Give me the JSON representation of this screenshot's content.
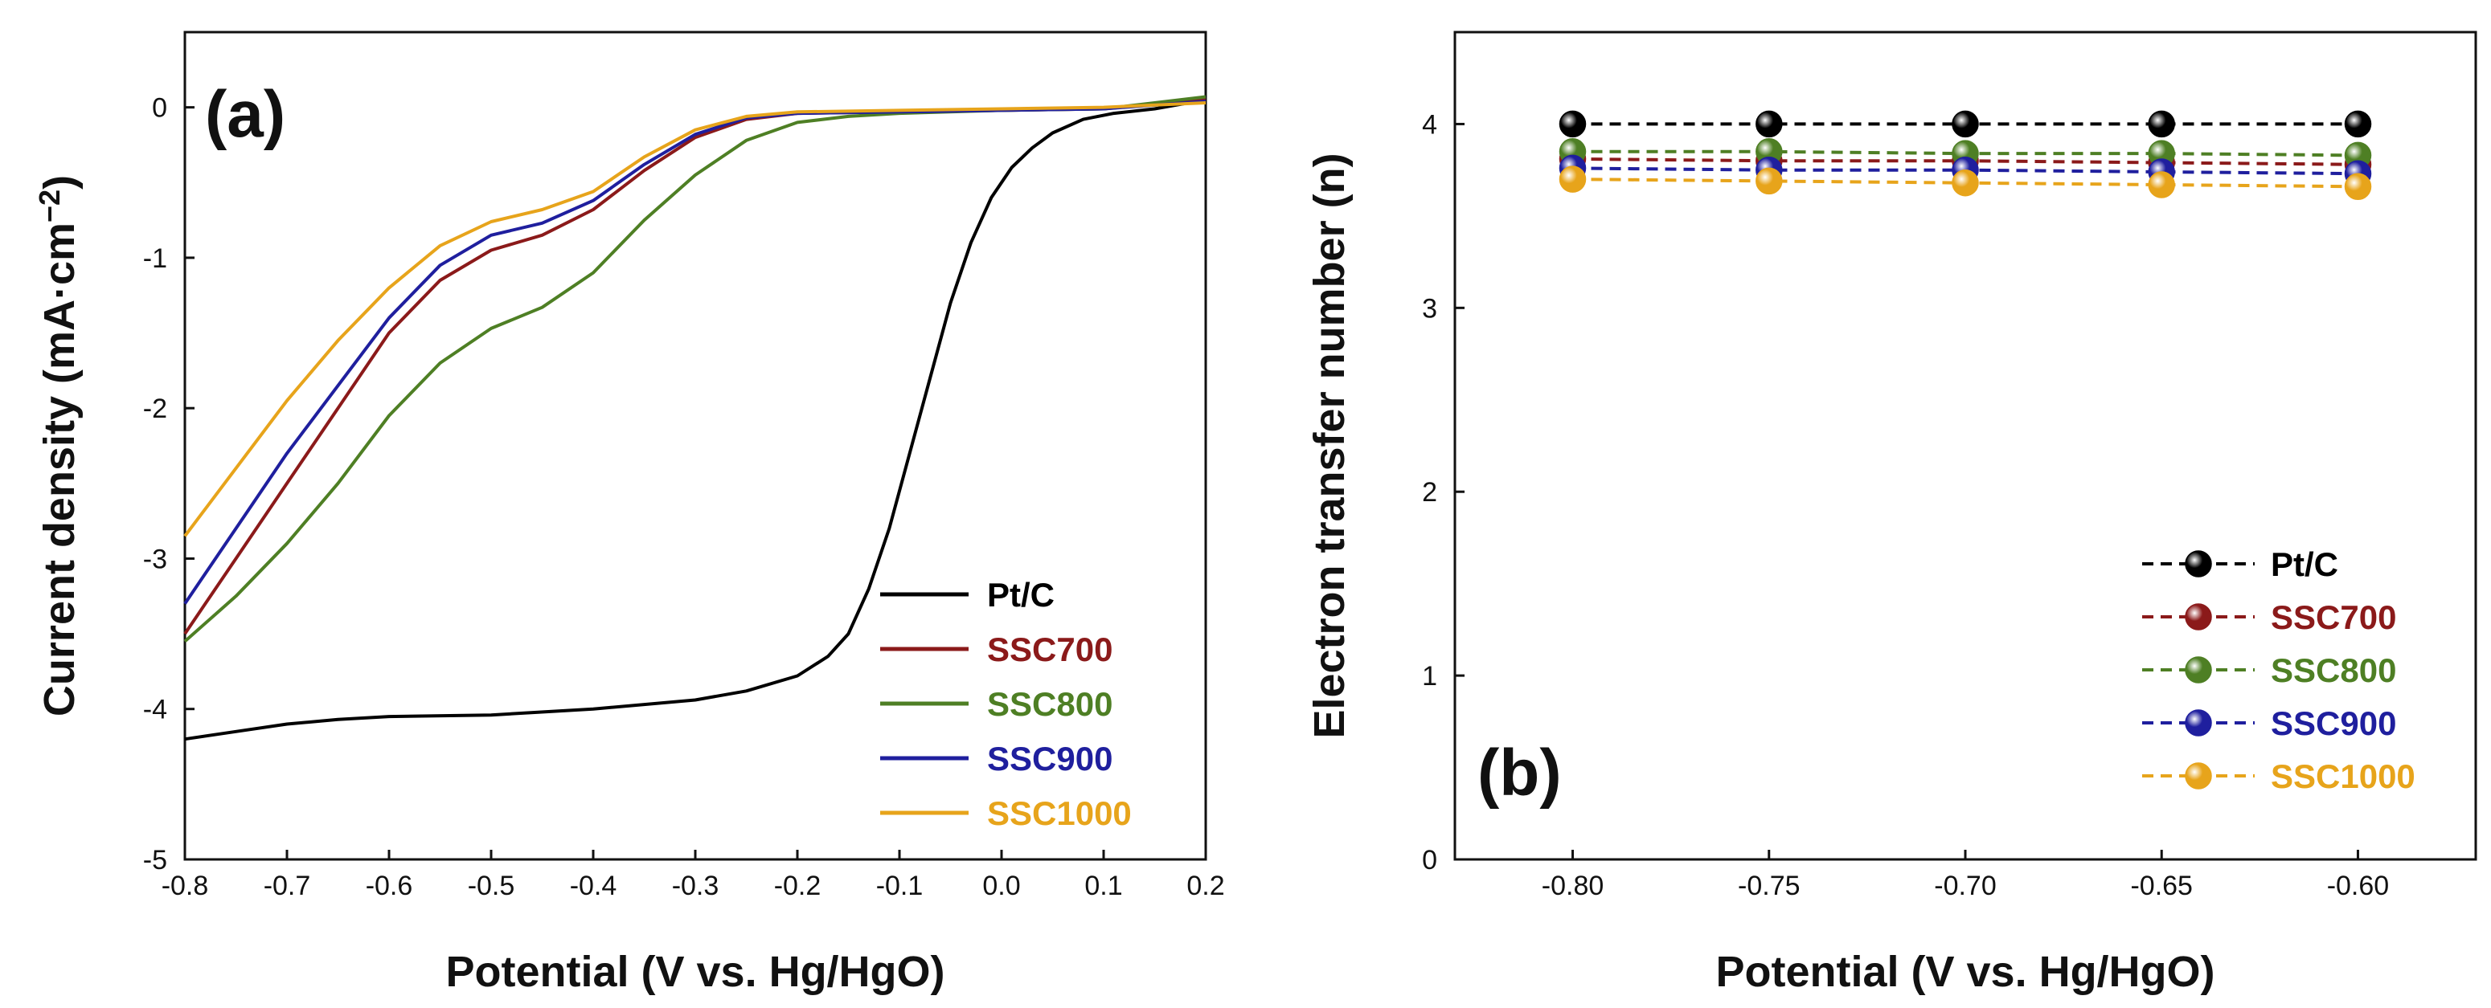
{
  "chart_data": [
    {
      "type": "line",
      "panel_label": "(a)",
      "xlabel": "Potential (V vs. Hg/HgO)",
      "ylabel_main": "Current density (mA·cm",
      "ylabel_sup": "−2",
      "ylabel_end": ")",
      "xlim": [
        -0.8,
        0.2
      ],
      "ylim": [
        -5,
        0.5
      ],
      "xticks": [
        -0.8,
        -0.7,
        -0.6,
        -0.5,
        -0.4,
        -0.3,
        -0.2,
        -0.1,
        0.0,
        0.1,
        0.2
      ],
      "xtick_labels": [
        "-0.8",
        "-0.7",
        "-0.6",
        "-0.5",
        "-0.4",
        "-0.3",
        "-0.2",
        "-0.1",
        "0.0",
        "0.1",
        "0.2"
      ],
      "yticks": [
        -5,
        -4,
        -3,
        -2,
        -1,
        0
      ],
      "ytick_labels": [
        "-5",
        "-4",
        "-3",
        "-2",
        "-1",
        "0"
      ],
      "legend_position": "bottom-right",
      "series": [
        {
          "name": "Pt/C",
          "color": "#000000",
          "x": [
            -0.8,
            -0.75,
            -0.7,
            -0.65,
            -0.6,
            -0.5,
            -0.4,
            -0.3,
            -0.25,
            -0.2,
            -0.17,
            -0.15,
            -0.13,
            -0.11,
            -0.09,
            -0.07,
            -0.05,
            -0.03,
            -0.01,
            0.01,
            0.03,
            0.05,
            0.08,
            0.11,
            0.15,
            0.2
          ],
          "y": [
            -4.2,
            -4.15,
            -4.1,
            -4.07,
            -4.05,
            -4.04,
            -4.0,
            -3.94,
            -3.88,
            -3.78,
            -3.65,
            -3.5,
            -3.2,
            -2.8,
            -2.3,
            -1.8,
            -1.3,
            -0.9,
            -0.6,
            -0.4,
            -0.27,
            -0.17,
            -0.08,
            -0.04,
            -0.01,
            0.05
          ]
        },
        {
          "name": "SSC700",
          "color": "#8B1A1A",
          "x": [
            -0.8,
            -0.75,
            -0.7,
            -0.65,
            -0.6,
            -0.55,
            -0.5,
            -0.45,
            -0.4,
            -0.35,
            -0.3,
            -0.25,
            -0.2,
            -0.1,
            0.0,
            0.1,
            0.2
          ],
          "y": [
            -3.5,
            -3.0,
            -2.5,
            -2.0,
            -1.5,
            -1.15,
            -0.95,
            -0.85,
            -0.68,
            -0.42,
            -0.2,
            -0.08,
            -0.04,
            -0.03,
            -0.02,
            -0.01,
            0.05
          ]
        },
        {
          "name": "SSC800",
          "color": "#4E7F24",
          "x": [
            -0.8,
            -0.75,
            -0.7,
            -0.65,
            -0.6,
            -0.55,
            -0.5,
            -0.45,
            -0.4,
            -0.35,
            -0.3,
            -0.25,
            -0.2,
            -0.15,
            -0.1,
            0.0,
            0.1,
            0.2
          ],
          "y": [
            -3.55,
            -3.25,
            -2.9,
            -2.5,
            -2.05,
            -1.7,
            -1.47,
            -1.33,
            -1.1,
            -0.75,
            -0.45,
            -0.22,
            -0.1,
            -0.06,
            -0.04,
            -0.02,
            -0.01,
            0.07
          ]
        },
        {
          "name": "SSC900",
          "color": "#1F1F9E",
          "x": [
            -0.8,
            -0.75,
            -0.7,
            -0.65,
            -0.6,
            -0.55,
            -0.5,
            -0.45,
            -0.4,
            -0.35,
            -0.3,
            -0.25,
            -0.2,
            -0.1,
            0.0,
            0.1,
            0.2
          ],
          "y": [
            -3.3,
            -2.8,
            -2.3,
            -1.85,
            -1.4,
            -1.05,
            -0.85,
            -0.77,
            -0.62,
            -0.38,
            -0.18,
            -0.07,
            -0.04,
            -0.03,
            -0.02,
            -0.01,
            0.04
          ]
        },
        {
          "name": "SSC1000",
          "color": "#E7A41B",
          "x": [
            -0.8,
            -0.75,
            -0.7,
            -0.65,
            -0.6,
            -0.55,
            -0.5,
            -0.45,
            -0.4,
            -0.35,
            -0.3,
            -0.25,
            -0.2,
            -0.1,
            0.0,
            0.1,
            0.2
          ],
          "y": [
            -2.85,
            -2.4,
            -1.95,
            -1.55,
            -1.2,
            -0.92,
            -0.76,
            -0.68,
            -0.56,
            -0.33,
            -0.15,
            -0.06,
            -0.03,
            -0.02,
            -0.01,
            0.0,
            0.03
          ]
        }
      ]
    },
    {
      "type": "line",
      "panel_label": "(b)",
      "xlabel": "Potential (V vs. Hg/HgO)",
      "ylabel": "Electron transfer number (n)",
      "xlim": [
        -0.83,
        -0.57
      ],
      "ylim": [
        0,
        4.5
      ],
      "xticks": [
        -0.8,
        -0.75,
        -0.7,
        -0.65,
        -0.6
      ],
      "xtick_labels": [
        "-0.80",
        "-0.75",
        "-0.70",
        "-0.65",
        "-0.60"
      ],
      "yticks": [
        0,
        1,
        2,
        3,
        4
      ],
      "ytick_labels": [
        "0",
        "1",
        "2",
        "3",
        "4"
      ],
      "legend_position": "bottom-right",
      "series": [
        {
          "name": "Pt/C",
          "color": "#000000",
          "x": [
            -0.8,
            -0.75,
            -0.7,
            -0.65,
            -0.6
          ],
          "y": [
            4.0,
            4.0,
            4.0,
            4.0,
            4.0
          ]
        },
        {
          "name": "SSC700",
          "color": "#8B1A1A",
          "x": [
            -0.8,
            -0.75,
            -0.7,
            -0.65,
            -0.6
          ],
          "y": [
            3.81,
            3.8,
            3.8,
            3.79,
            3.78
          ]
        },
        {
          "name": "SSC800",
          "color": "#4E7F24",
          "x": [
            -0.8,
            -0.75,
            -0.7,
            -0.65,
            -0.6
          ],
          "y": [
            3.85,
            3.85,
            3.84,
            3.84,
            3.83
          ]
        },
        {
          "name": "SSC900",
          "color": "#1F1F9E",
          "x": [
            -0.8,
            -0.75,
            -0.7,
            -0.65,
            -0.6
          ],
          "y": [
            3.76,
            3.75,
            3.75,
            3.74,
            3.73
          ]
        },
        {
          "name": "SSC1000",
          "color": "#E7A41B",
          "x": [
            -0.8,
            -0.75,
            -0.7,
            -0.65,
            -0.6
          ],
          "y": [
            3.7,
            3.69,
            3.68,
            3.67,
            3.66
          ]
        }
      ]
    }
  ]
}
